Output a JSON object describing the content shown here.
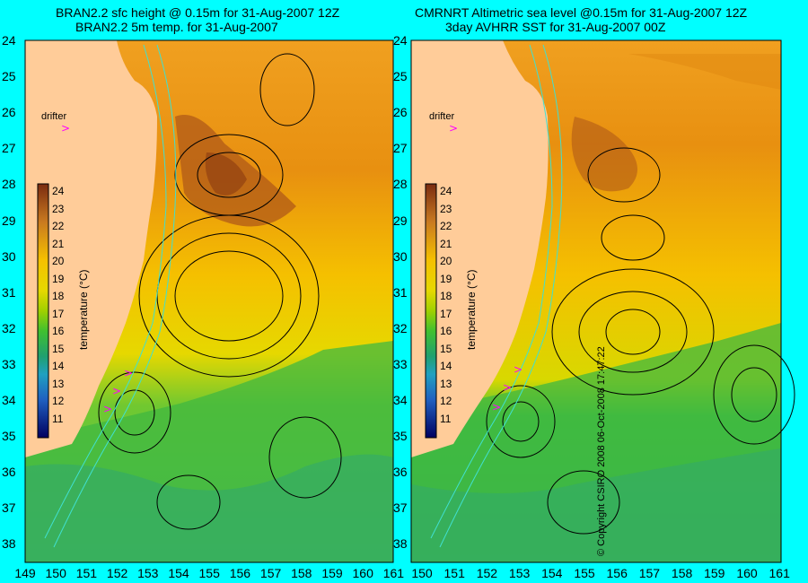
{
  "panels": [
    {
      "title_line1": "BRAN2.2 sfc height @ 0.15m for 31-Aug-2007 12Z",
      "title_line2": "BRAN2.2 5m temp. for 31-Aug-2007"
    },
    {
      "title_line1": "CMRNRT Altimetric sea level  @0.15m  for 31-Aug-2007 12Z",
      "title_line2": "3day AVHRR SST for 31-Aug-2007 00Z"
    }
  ],
  "y_ticks": [
    "24",
    "25",
    "26",
    "27",
    "28",
    "29",
    "30",
    "31",
    "32",
    "33",
    "34",
    "35",
    "36",
    "37",
    "38"
  ],
  "x_ticks_left": [
    "149",
    "150",
    "151",
    "152",
    "153",
    "154",
    "155",
    "156",
    "157",
    "158",
    "159",
    "160",
    "161"
  ],
  "x_ticks_right": [
    "150",
    "151",
    "152",
    "153",
    "154",
    "155",
    "156",
    "157",
    "158",
    "159",
    "160",
    "161"
  ],
  "drifter_label": "drifter",
  "drifter_marker": ">",
  "colorbar": {
    "label": "temperature (°C)",
    "ticks": [
      "24",
      "23",
      "22",
      "21",
      "20",
      "19",
      "18",
      "17",
      "16",
      "15",
      "14",
      "13",
      "12",
      "11"
    ],
    "colors": [
      "#7a2b10",
      "#a54a1a",
      "#c97a20",
      "#f0a020",
      "#f5c000",
      "#e6d800",
      "#b0d800",
      "#60c830",
      "#20b040",
      "#20a070",
      "#20a0b0",
      "#2060c0",
      "#1020a0",
      "#000060"
    ]
  },
  "colors": {
    "land": "#ffcc99",
    "sea_background": "#00ffff",
    "drifter": "#ff00ff",
    "contour": "#000000",
    "isobath": "#40e0d0"
  },
  "copyright": "© Copyright CSIRO 2008    06-Oct-2008 17:47:22"
}
